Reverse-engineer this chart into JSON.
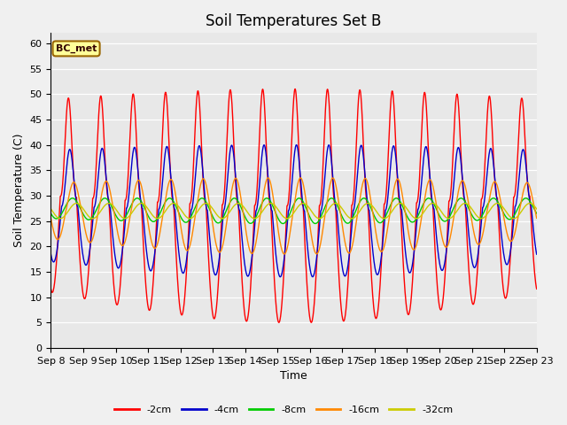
{
  "title": "Soil Temperatures Set B",
  "xlabel": "Time",
  "ylabel": "Soil Temperature (C)",
  "ylim": [
    0,
    62
  ],
  "yticks": [
    0,
    5,
    10,
    15,
    20,
    25,
    30,
    35,
    40,
    45,
    50,
    55,
    60
  ],
  "series_labels": [
    "-2cm",
    "-4cm",
    "-8cm",
    "-16cm",
    "-32cm"
  ],
  "series_colors": [
    "#ff0000",
    "#0000cc",
    "#00cc00",
    "#ff8800",
    "#cccc00"
  ],
  "plot_bg_color": "#e8e8e8",
  "fig_bg_color": "#f0f0f0",
  "annotation_text": "BC_met",
  "annotation_bg": "#ffff99",
  "annotation_border": "#996600",
  "xticklabels": [
    "Sep 8",
    "Sep 9",
    "Sep 10",
    "Sep 11",
    "Sep 12",
    "Sep 13",
    "Sep 14",
    "Sep 15",
    "Sep 16",
    "Sep 17",
    "Sep 18",
    "Sep 19",
    "Sep 20",
    "Sep 21",
    "Sep 22",
    "Sep 23"
  ],
  "title_fontsize": 12,
  "axis_fontsize": 9,
  "tick_fontsize": 8,
  "linewidth": 1.0,
  "figwidth": 6.4,
  "figheight": 4.8,
  "dpi": 100
}
